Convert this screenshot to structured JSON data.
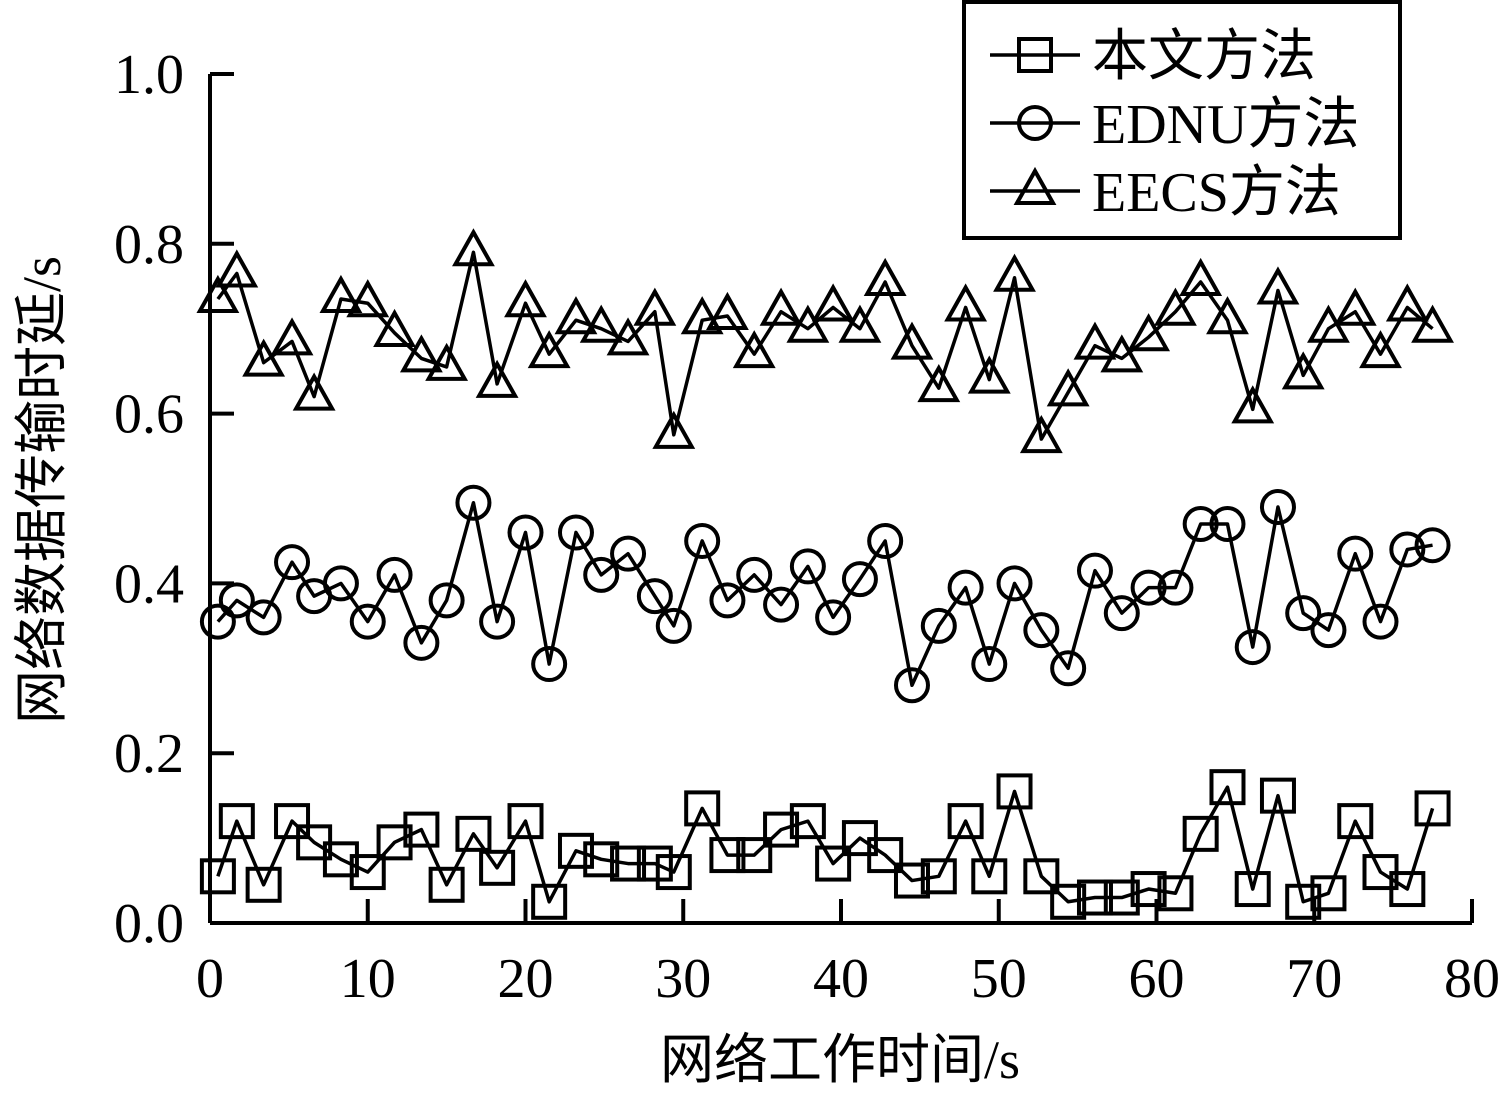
{
  "chart_data": {
    "type": "line",
    "xlabel": "网络工作时间/s",
    "ylabel": "网络数据传输时延/s",
    "xlim": [
      0,
      80
    ],
    "ylim": [
      0,
      1.0
    ],
    "xticks": [
      "0",
      "10",
      "20",
      "30",
      "40",
      "50",
      "60",
      "70",
      "80"
    ],
    "yticks": [
      "0.0",
      "0.2",
      "0.4",
      "0.6",
      "0.8",
      "1.0"
    ],
    "grid": false,
    "legend_position": "top-right",
    "x": [
      0.5,
      1.7,
      3.4,
      5.2,
      6.6,
      8.3,
      10,
      11.7,
      13.4,
      15,
      16.7,
      18.2,
      20,
      21.5,
      23.2,
      24.8,
      26.5,
      28.2,
      29.4,
      31.2,
      32.8,
      34.5,
      36.2,
      37.9,
      39.5,
      41.2,
      42.8,
      44.5,
      46.2,
      47.9,
      49.4,
      51,
      52.7,
      54.4,
      56.1,
      57.8,
      59.5,
      61.2,
      62.8,
      64.5,
      66.1,
      67.7,
      69.3,
      70.9,
      72.6,
      74.2,
      75.9,
      77.5
    ],
    "series": [
      {
        "name": "本文方法",
        "marker": "square",
        "values": [
          0.055,
          0.12,
          0.045,
          0.12,
          0.095,
          0.075,
          0.06,
          0.095,
          0.11,
          0.045,
          0.105,
          0.065,
          0.12,
          0.025,
          0.085,
          0.075,
          0.07,
          0.07,
          0.06,
          0.135,
          0.08,
          0.08,
          0.11,
          0.12,
          0.07,
          0.1,
          0.08,
          0.05,
          0.055,
          0.12,
          0.055,
          0.155,
          0.055,
          0.025,
          0.03,
          0.03,
          0.04,
          0.035,
          0.105,
          0.16,
          0.04,
          0.15,
          0.025,
          0.035,
          0.12,
          0.06,
          0.04,
          0.135
        ]
      },
      {
        "name": "EDNU方法",
        "marker": "circle",
        "values": [
          0.355,
          0.38,
          0.36,
          0.425,
          0.385,
          0.4,
          0.355,
          0.41,
          0.33,
          0.38,
          0.495,
          0.355,
          0.46,
          0.305,
          0.46,
          0.41,
          0.435,
          0.385,
          0.35,
          0.45,
          0.38,
          0.41,
          0.375,
          0.42,
          0.36,
          0.405,
          0.45,
          0.28,
          0.35,
          0.395,
          0.305,
          0.4,
          0.345,
          0.3,
          0.415,
          0.365,
          0.395,
          0.395,
          0.47,
          0.47,
          0.325,
          0.49,
          0.365,
          0.345,
          0.435,
          0.355,
          0.44,
          0.445
        ]
      },
      {
        "name": "EECS方法",
        "marker": "triangle",
        "values": [
          0.735,
          0.765,
          0.66,
          0.685,
          0.62,
          0.735,
          0.73,
          0.695,
          0.665,
          0.655,
          0.79,
          0.635,
          0.73,
          0.67,
          0.71,
          0.7,
          0.685,
          0.72,
          0.575,
          0.71,
          0.715,
          0.67,
          0.72,
          0.7,
          0.725,
          0.7,
          0.755,
          0.68,
          0.63,
          0.725,
          0.64,
          0.76,
          0.57,
          0.625,
          0.68,
          0.665,
          0.69,
          0.72,
          0.755,
          0.71,
          0.605,
          0.745,
          0.645,
          0.7,
          0.72,
          0.67,
          0.725,
          0.7
        ]
      }
    ]
  }
}
